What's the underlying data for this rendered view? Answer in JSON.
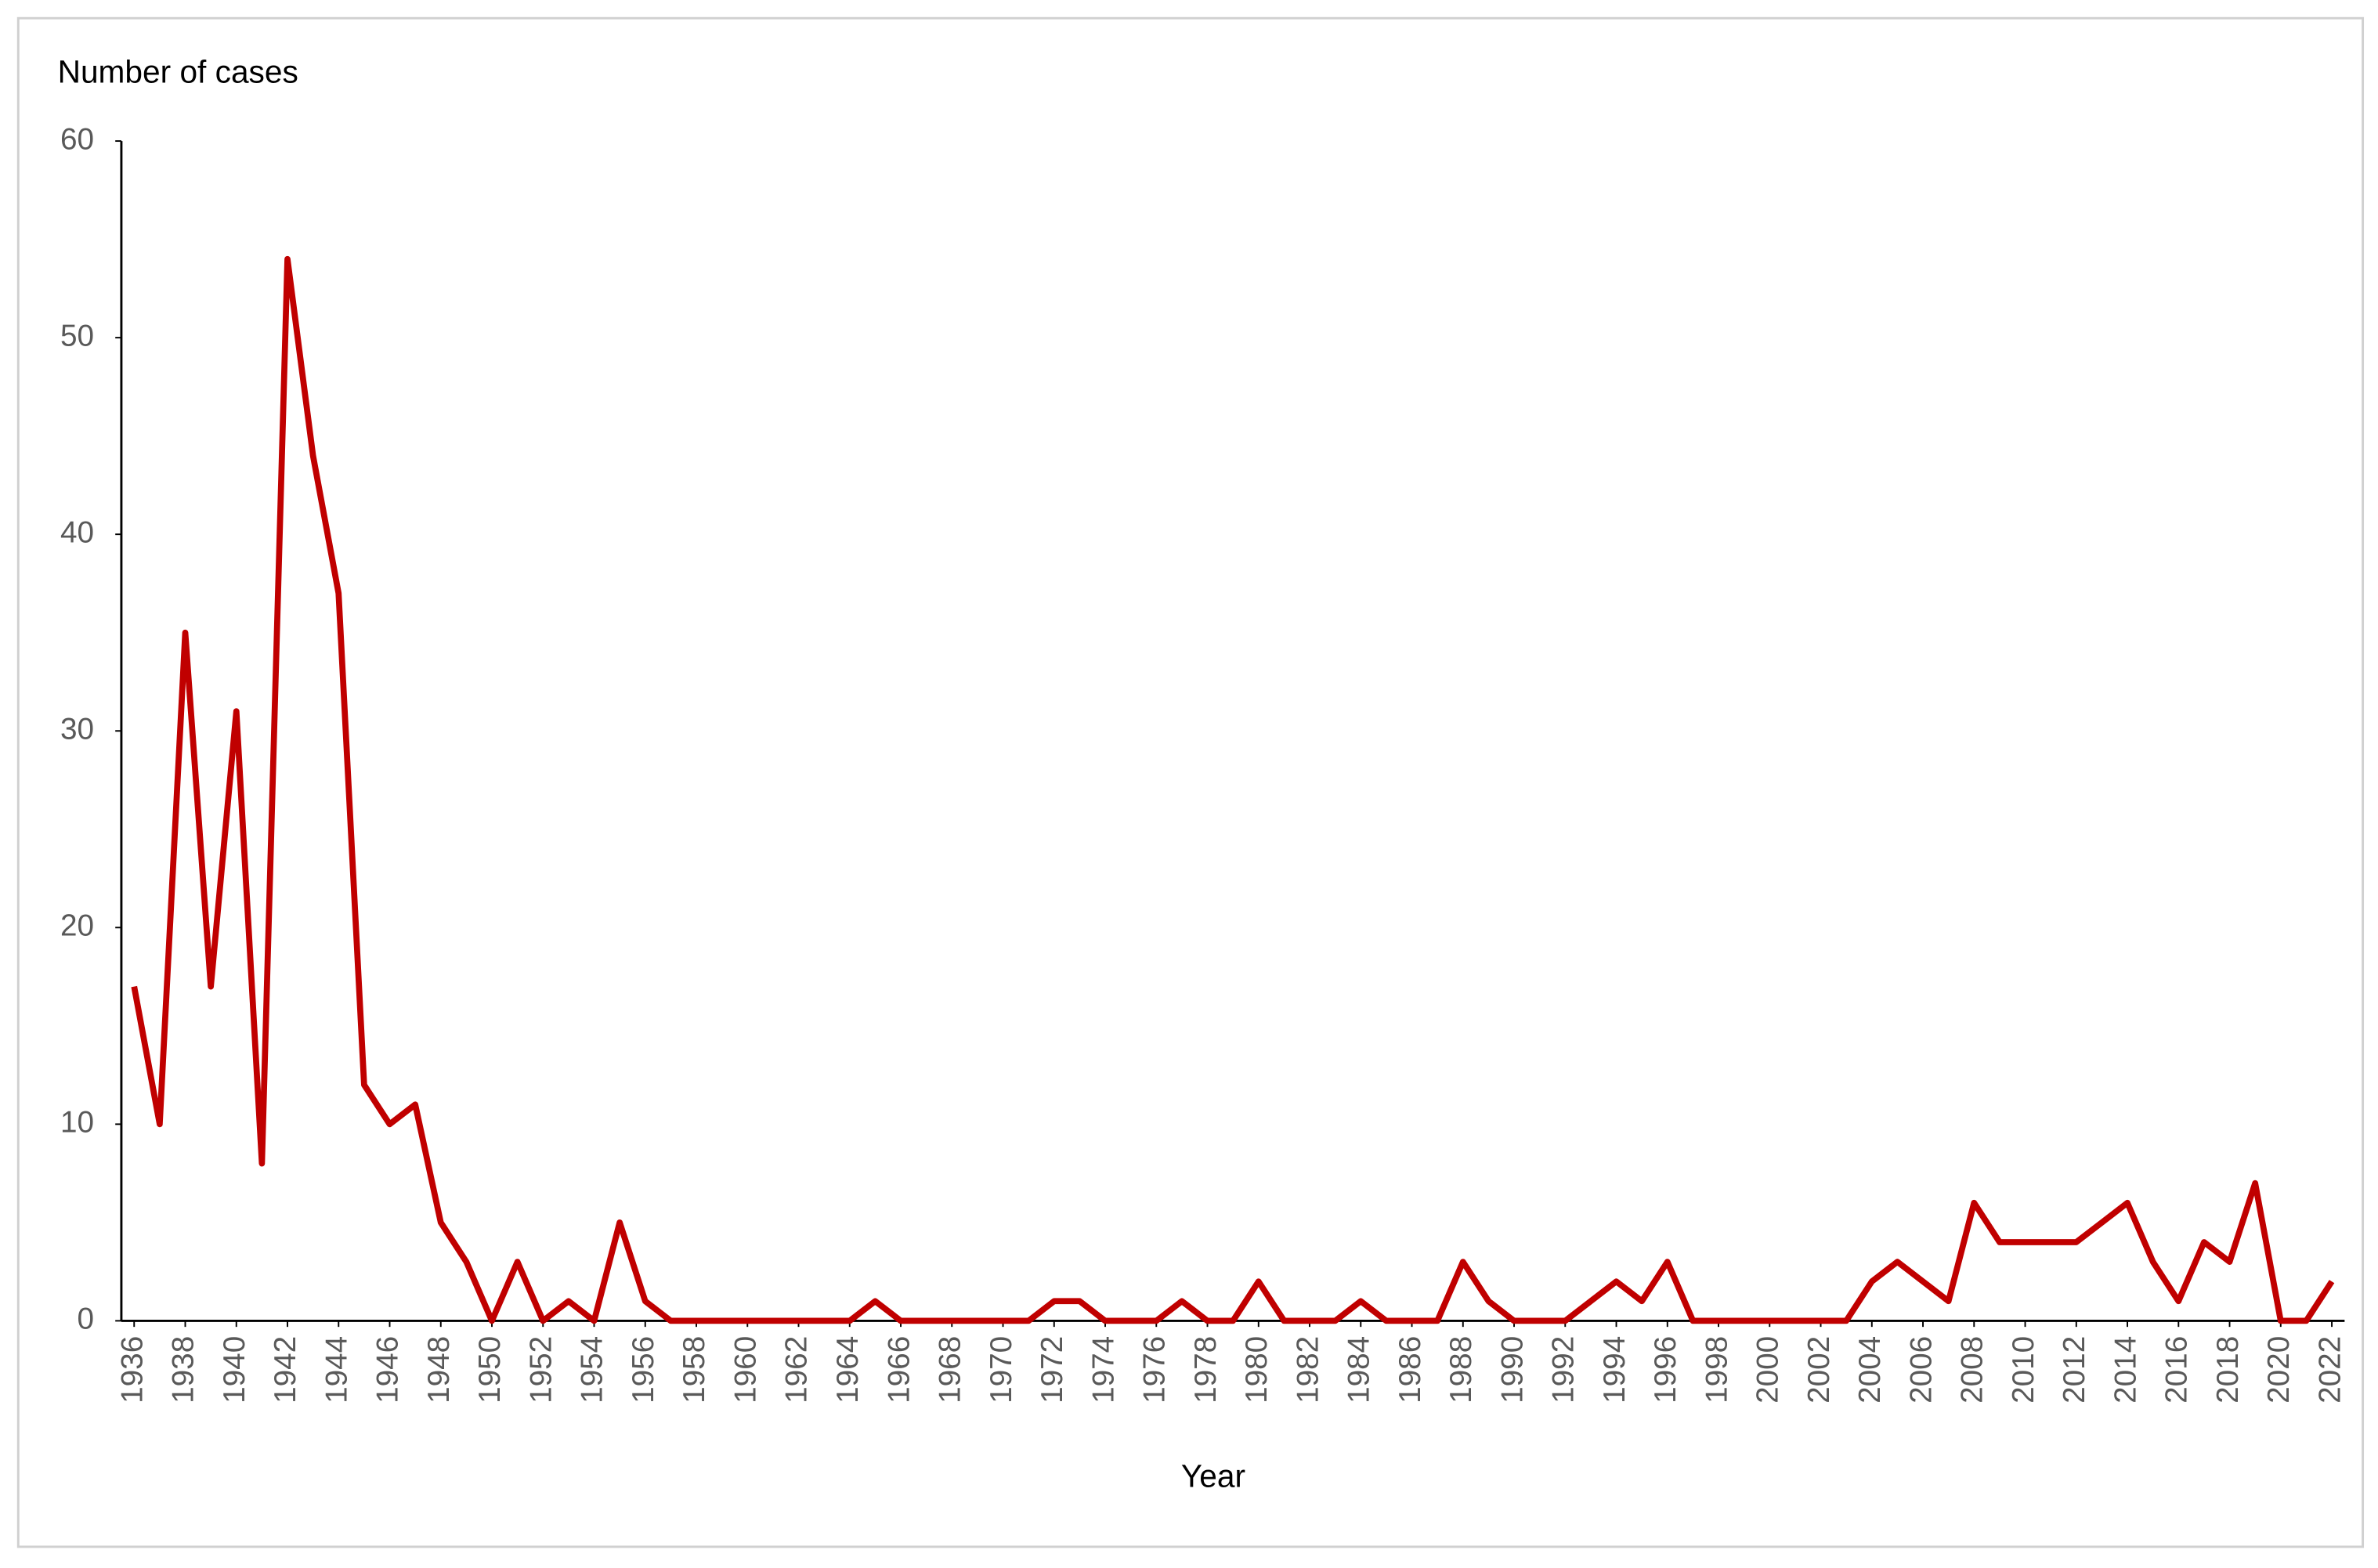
{
  "chart_data": {
    "type": "line",
    "y_label": "Number of cases",
    "x_label": "Year",
    "x": [
      1936,
      1937,
      1938,
      1939,
      1940,
      1941,
      1942,
      1943,
      1944,
      1945,
      1946,
      1947,
      1948,
      1949,
      1950,
      1951,
      1952,
      1953,
      1954,
      1955,
      1956,
      1957,
      1958,
      1959,
      1960,
      1961,
      1962,
      1963,
      1964,
      1965,
      1966,
      1967,
      1968,
      1969,
      1970,
      1971,
      1972,
      1973,
      1974,
      1975,
      1976,
      1977,
      1978,
      1979,
      1980,
      1981,
      1982,
      1983,
      1984,
      1985,
      1986,
      1987,
      1988,
      1989,
      1990,
      1991,
      1992,
      1993,
      1994,
      1995,
      1996,
      1997,
      1998,
      1999,
      2000,
      2001,
      2002,
      2003,
      2004,
      2005,
      2006,
      2007,
      2008,
      2009,
      2010,
      2011,
      2012,
      2013,
      2014,
      2015,
      2016,
      2017,
      2018,
      2019,
      2020,
      2021,
      2022
    ],
    "values": [
      17,
      10,
      35,
      17,
      31,
      8,
      54,
      44,
      37,
      12,
      10,
      11,
      5,
      3,
      0,
      3,
      0,
      1,
      0,
      5,
      1,
      0,
      0,
      0,
      0,
      0,
      0,
      0,
      0,
      1,
      0,
      0,
      0,
      0,
      0,
      0,
      1,
      1,
      0,
      0,
      0,
      1,
      0,
      0,
      2,
      0,
      0,
      0,
      1,
      0,
      0,
      0,
      3,
      1,
      0,
      0,
      0,
      1,
      2,
      1,
      3,
      0,
      0,
      0,
      0,
      0,
      0,
      0,
      2,
      3,
      2,
      1,
      6,
      4,
      4,
      4,
      4,
      5,
      6,
      3,
      1,
      4,
      3,
      7,
      0,
      0,
      2
    ],
    "color": "#c00000",
    "xlim": [
      1935.5,
      2022.5
    ],
    "xticks": [
      1936,
      1938,
      1940,
      1942,
      1944,
      1946,
      1948,
      1950,
      1952,
      1954,
      1956,
      1958,
      1960,
      1962,
      1964,
      1966,
      1968,
      1970,
      1972,
      1974,
      1976,
      1978,
      1980,
      1982,
      1984,
      1986,
      1988,
      1990,
      1992,
      1994,
      1996,
      1998,
      2000,
      2002,
      2004,
      2006,
      2008,
      2010,
      2012,
      2014,
      2016,
      2018,
      2020,
      2022
    ],
    "ylim": [
      0,
      60
    ],
    "yticks": [
      0,
      10,
      20,
      30,
      40,
      50,
      60
    ]
  }
}
